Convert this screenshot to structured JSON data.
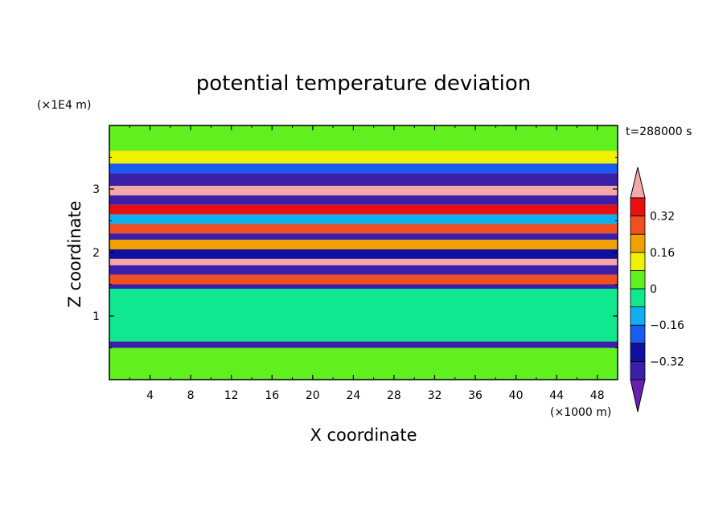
{
  "chart_data": {
    "type": "heatmap",
    "title": "potential temperature deviation",
    "xlabel": "X coordinate",
    "ylabel": "Z coordinate",
    "x_unit": "(×1000 m)",
    "y_unit": "(×1E4 m)",
    "time_label": "t=288000 s",
    "xlim": [
      0,
      50
    ],
    "ylim": [
      0,
      4
    ],
    "x_ticks": [
      4,
      8,
      12,
      16,
      20,
      24,
      28,
      32,
      36,
      40,
      44,
      48
    ],
    "y_ticks": [
      1,
      2,
      3
    ],
    "colorbar": {
      "levels": [
        -0.4,
        -0.32,
        -0.24,
        -0.16,
        -0.08,
        0,
        0.08,
        0.16,
        0.24,
        0.32,
        0.4
      ],
      "colors": [
        "#6a1fb0",
        "#3b1fa8",
        "#1010a0",
        "#1a5cf0",
        "#10b0f0",
        "#10e890",
        "#60f020",
        "#f0f000",
        "#f0a000",
        "#f05020",
        "#e81010",
        "#f4a8a8"
      ],
      "tick_labels": [
        "0.32",
        "0.16",
        "0",
        "−0.16",
        "−0.32"
      ],
      "tick_values": [
        0.32,
        0.16,
        0,
        -0.16,
        -0.32
      ]
    },
    "field_bands": [
      {
        "z0": 3.6,
        "z1": 4.0,
        "value": 0.05
      },
      {
        "z0": 3.4,
        "z1": 3.6,
        "value": 0.1
      },
      {
        "z0": 3.25,
        "z1": 3.4,
        "value": -0.2
      },
      {
        "z0": 3.05,
        "z1": 3.25,
        "value": -0.38
      },
      {
        "z0": 2.9,
        "z1": 3.05,
        "value": 0.42
      },
      {
        "z0": 2.75,
        "z1": 2.9,
        "value": -0.38
      },
      {
        "z0": 2.6,
        "z1": 2.75,
        "value": 0.38
      },
      {
        "z0": 2.45,
        "z1": 2.6,
        "value": -0.1
      },
      {
        "z0": 2.3,
        "z1": 2.45,
        "value": 0.3
      },
      {
        "z0": 2.2,
        "z1": 2.3,
        "value": -0.38
      },
      {
        "z0": 2.05,
        "z1": 2.2,
        "value": 0.2
      },
      {
        "z0": 1.9,
        "z1": 2.05,
        "value": -0.25
      },
      {
        "z0": 1.8,
        "z1": 1.9,
        "value": 0.42
      },
      {
        "z0": 1.65,
        "z1": 1.8,
        "value": -0.38
      },
      {
        "z0": 1.5,
        "z1": 1.65,
        "value": 0.3
      },
      {
        "z0": 1.43,
        "z1": 1.5,
        "value": -0.38
      },
      {
        "z0": 0.6,
        "z1": 1.43,
        "value": -0.02
      },
      {
        "z0": 0.5,
        "z1": 0.6,
        "value": -0.38
      },
      {
        "z0": 0.0,
        "z1": 0.5,
        "value": 0.05
      }
    ]
  }
}
